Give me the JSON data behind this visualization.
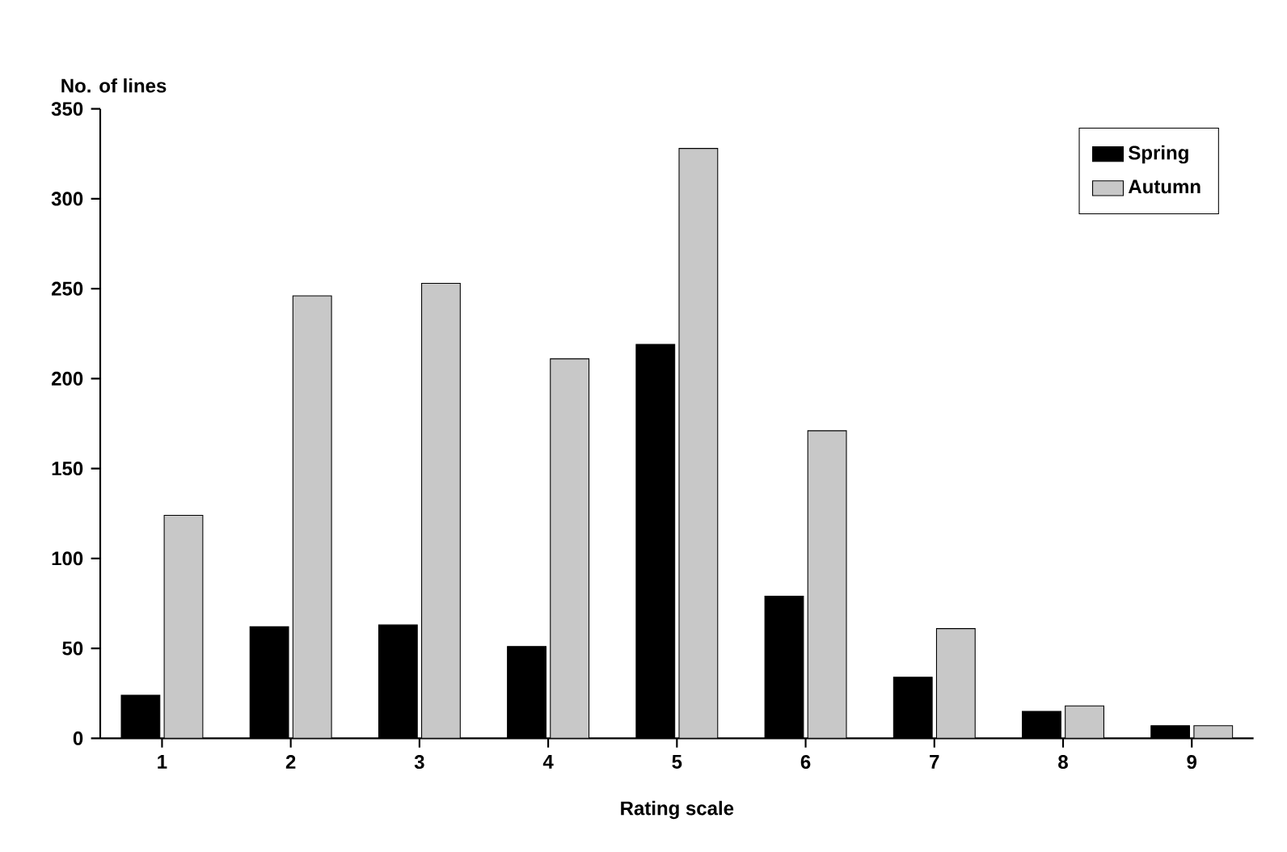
{
  "chart_data": {
    "type": "bar",
    "xlabel": "Rating scale",
    "ylabel": "No. of lines",
    "categories": [
      "1",
      "2",
      "3",
      "4",
      "5",
      "6",
      "7",
      "8",
      "9"
    ],
    "series": [
      {
        "name": "Spring",
        "color": "#000000",
        "values": [
          24,
          62,
          63,
          51,
          219,
          79,
          34,
          15,
          7
        ]
      },
      {
        "name": "Autumn",
        "color": "#c8c8c8",
        "values": [
          124,
          246,
          253,
          211,
          328,
          171,
          61,
          18,
          7
        ]
      }
    ],
    "ylim": [
      0,
      350
    ],
    "yticks": [
      0,
      50,
      100,
      150,
      200,
      250,
      300,
      350
    ],
    "grid": false,
    "legend": "top right"
  }
}
